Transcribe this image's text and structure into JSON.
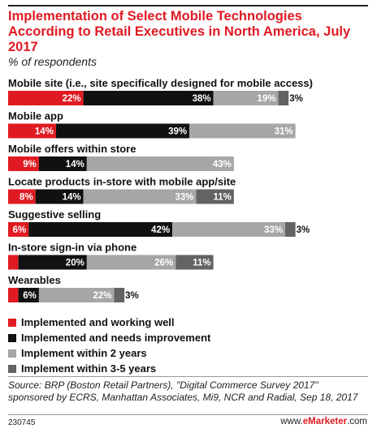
{
  "title": "Implementation of Select Mobile Technologies According to Retail Executives in North America, July 2017",
  "subtitle": "% of respondents",
  "source": "Source: BRP (Boston Retail Partners), \"Digital Commerce Survey 2017\" sponsored by ECRS, Manhattan Associates, Mi9, NCR and Radial, Sep 18, 2017",
  "chart_id": "230745",
  "brand": {
    "prefix": "www.",
    "name": "eMarketer",
    "suffix": ".com"
  },
  "colors": {
    "implemented_well": "#e01a22",
    "needs_improvement": "#111111",
    "within_2_years": "#a6a6a6",
    "within_3_5_years": "#636363"
  },
  "chart_data": {
    "type": "bar",
    "stacked": true,
    "orientation": "horizontal",
    "categories": [
      "Mobile site (i.e., site specifically designed for mobile access)",
      "Mobile app",
      "Mobile offers within store",
      "Locate products in-store with mobile app/site",
      "Suggestive selling",
      "In-store sign-in via phone",
      "Wearables"
    ],
    "series": [
      {
        "name": "Implemented and working well",
        "values": [
          22,
          14,
          9,
          8,
          6,
          3,
          3
        ]
      },
      {
        "name": "Implemented and needs improvement",
        "values": [
          38,
          39,
          14,
          14,
          42,
          20,
          6
        ]
      },
      {
        "name": "Implement within 2 years",
        "values": [
          19,
          31,
          43,
          33,
          33,
          26,
          22
        ]
      },
      {
        "name": "Implement within 3-5 years",
        "values": [
          3,
          0,
          0,
          11,
          3,
          11,
          3
        ]
      }
    ],
    "value_labels": [
      [
        "22%",
        "38%",
        "19%",
        "3%"
      ],
      [
        "14%",
        "39%",
        "31%",
        ""
      ],
      [
        "9%",
        "14%",
        "43%",
        ""
      ],
      [
        "8%",
        "14%",
        "33%",
        "11%"
      ],
      [
        "6%",
        "42%",
        "33%",
        "3%"
      ],
      [
        "3%",
        "20%",
        "26%",
        "11%"
      ],
      [
        "3%",
        "6%",
        "22%",
        "3%"
      ]
    ],
    "legend": "bottom-left"
  }
}
